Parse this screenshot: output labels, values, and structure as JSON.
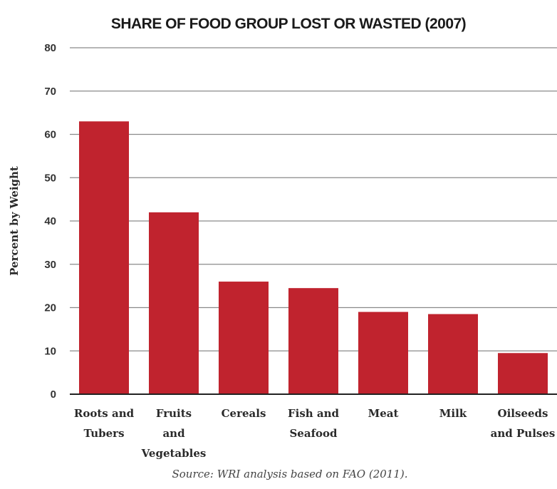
{
  "chart_data": {
    "type": "bar",
    "title": "SHARE OF FOOD GROUP LOST OR WASTED (2007)",
    "ylabel": "Percent by Weight",
    "xlabel": "",
    "categories": [
      [
        "Roots and",
        "Tubers"
      ],
      [
        "Fruits",
        "and",
        "Vegetables"
      ],
      [
        "Cereals"
      ],
      [
        "Fish and",
        "Seafood"
      ],
      [
        "Meat"
      ],
      [
        "Milk"
      ],
      [
        "Oilseeds",
        "and Pulses"
      ]
    ],
    "values": [
      63,
      42,
      26,
      24.5,
      19,
      18.5,
      9.5
    ],
    "ylim": [
      0,
      80
    ],
    "yticks": [
      0,
      10,
      20,
      30,
      40,
      50,
      60,
      70,
      80
    ],
    "grid": true,
    "bar_color": "#c0232e",
    "source": "Source: WRI analysis based on FAO (2011)."
  }
}
